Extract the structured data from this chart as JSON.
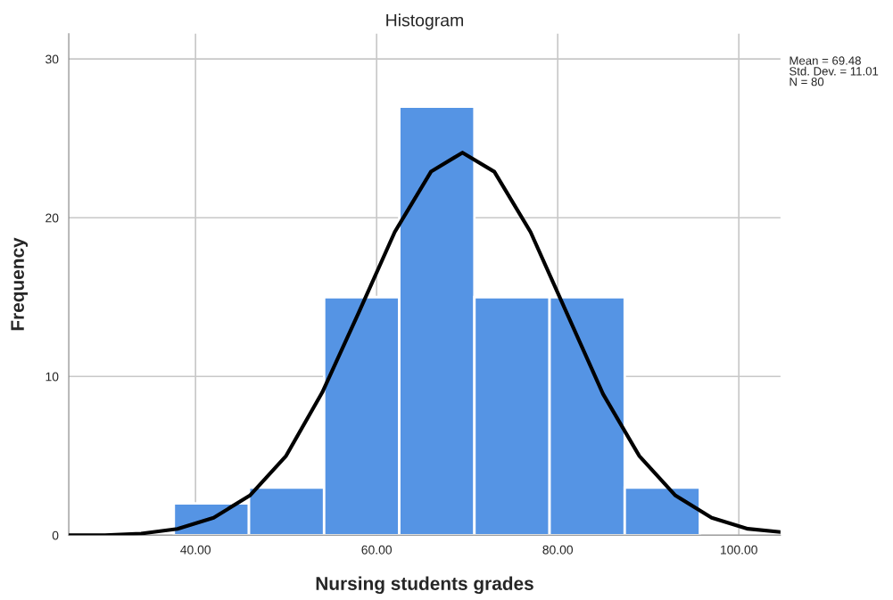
{
  "chart_data": {
    "type": "histogram",
    "title": "Histogram",
    "xlabel": "Nursing students grades",
    "ylabel": "Frequency",
    "bins": [
      37.6,
      45.9,
      54.2,
      62.5,
      70.8,
      79.1,
      87.4,
      95.7
    ],
    "values": [
      2,
      3,
      15,
      27,
      15,
      15,
      3
    ],
    "color": "#5594e4",
    "series": [
      {
        "type": "line",
        "color": "#000000",
        "x": [
          26,
          30,
          34,
          38,
          42,
          46,
          50,
          54,
          58,
          62,
          66,
          69.48,
          73,
          77,
          81,
          85,
          89,
          93,
          97,
          101,
          104.6
        ],
        "values": [
          0.0,
          0.0,
          0.1,
          0.4,
          1.1,
          2.5,
          5.0,
          9.0,
          14.0,
          19.1,
          22.9,
          24.1,
          22.9,
          19.1,
          14.0,
          8.9,
          5.0,
          2.5,
          1.1,
          0.4,
          0.2
        ]
      }
    ],
    "xlim": [
      26,
      104.6
    ],
    "ylim": [
      0,
      31.6
    ],
    "xticks": [
      {
        "value": 40,
        "label": "40.00"
      },
      {
        "value": 60,
        "label": "60.00"
      },
      {
        "value": 80,
        "label": "80.00"
      },
      {
        "value": 100,
        "label": "100.00"
      }
    ],
    "yticks": [
      0,
      10,
      20,
      30
    ],
    "grid": true,
    "annotations": [
      "Mean = 69.48\nStd. Dev. = 11.01\nN = 80"
    ]
  }
}
